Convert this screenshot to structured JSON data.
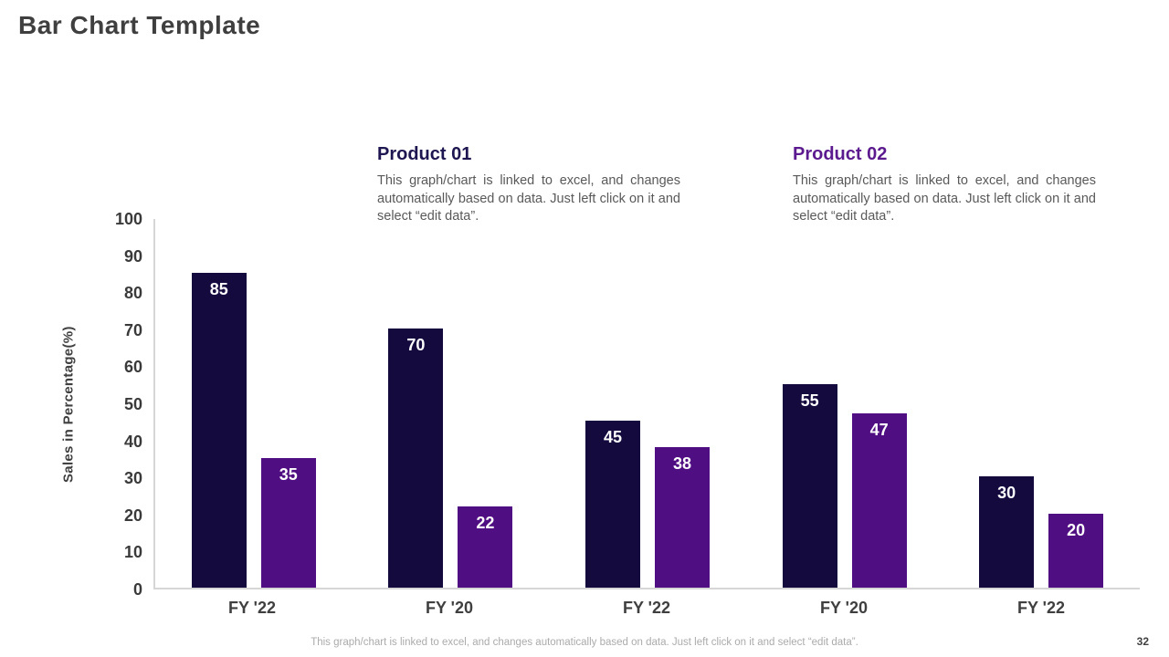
{
  "slide": {
    "title": "Bar Chart Template",
    "page_number": "32",
    "footer_note": "This graph/chart is linked to excel, and changes automatically based on data. Just left click on it and select “edit data”."
  },
  "products": [
    {
      "name": "Product 01",
      "description": "This graph/chart is linked to excel, and changes automatically based on data. Just left click on it and select “edit data”.",
      "color": "#1e1650"
    },
    {
      "name": "Product 02",
      "description": "This graph/chart is linked to excel, and changes automatically based on data. Just left click on it and select “edit data”.",
      "color": "#5c1a8f"
    }
  ],
  "chart_data": {
    "type": "bar",
    "title": "",
    "categories": [
      "FY '22",
      "FY '20",
      "FY '22",
      "FY '20",
      "FY '22"
    ],
    "series": [
      {
        "name": "Product 01",
        "color": "#150a3e",
        "values": [
          85,
          70,
          45,
          55,
          30
        ]
      },
      {
        "name": "Product 02",
        "color": "#4f0e81",
        "values": [
          35,
          22,
          38,
          47,
          20
        ]
      }
    ],
    "xlabel": "",
    "ylabel": "Sales in Percentage(%)",
    "ylim": [
      0,
      100
    ],
    "y_ticks": [
      0,
      10,
      20,
      30,
      40,
      50,
      60,
      70,
      80,
      90,
      100
    ],
    "grid": false,
    "legend": "none",
    "data_labels": true,
    "axis_color": "#d6d6d6"
  }
}
